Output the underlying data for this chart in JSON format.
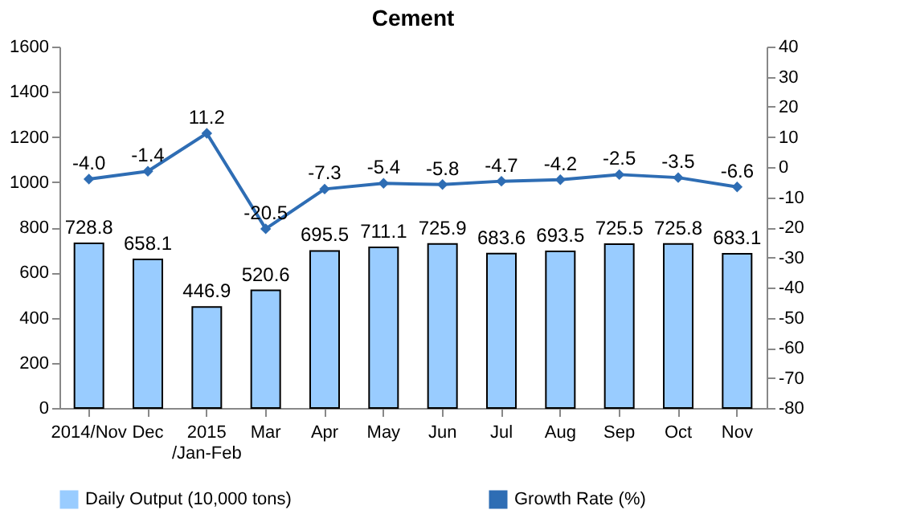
{
  "chart_data": {
    "type": "bar",
    "title": "Cement",
    "categories": [
      "2014/Nov",
      "Dec",
      "2015 /Jan-Feb",
      "Mar",
      "Apr",
      "May",
      "Jun",
      "Jul",
      "Aug",
      "Sep",
      "Oct",
      "Nov"
    ],
    "series": [
      {
        "name": "Daily Output (10,000 tons)",
        "color": "#99ccff",
        "values": [
          728.8,
          658.1,
          446.9,
          520.6,
          695.5,
          711.1,
          725.9,
          683.6,
          693.5,
          725.5,
          725.8,
          683.1
        ],
        "value_labels": [
          "728.8",
          "658.1",
          "446.9",
          "520.6",
          "695.5",
          "711.1",
          "725.9",
          "683.6",
          "693.5",
          "725.5",
          "725.8",
          "683.1"
        ]
      },
      {
        "name": "Growth Rate (%)",
        "type": "line",
        "axis": "y2",
        "color": "#2e6db4",
        "values": [
          -4.0,
          -1.4,
          11.2,
          -20.5,
          -7.3,
          -5.4,
          -5.8,
          -4.7,
          -4.2,
          -2.5,
          -3.5,
          -6.6
        ],
        "value_labels": [
          "-4.0",
          "-1.4",
          "11.2",
          "-20.5",
          "-7.3",
          "-5.4",
          "-5.8",
          "-4.7",
          "-4.2",
          "-2.5",
          "-3.5",
          "-6.6"
        ]
      }
    ],
    "ylim": [
      0,
      1600
    ],
    "yticks": [
      0,
      200,
      400,
      600,
      800,
      1000,
      1200,
      1400,
      1600
    ],
    "y2lim": [
      -80,
      40
    ],
    "y2ticks": [
      -80,
      -70,
      -60,
      -50,
      -40,
      -30,
      -20,
      -10,
      0,
      10,
      20,
      30,
      40
    ],
    "grid": false,
    "legend": "bottom",
    "marker": "diamond",
    "line_style": "solid"
  }
}
